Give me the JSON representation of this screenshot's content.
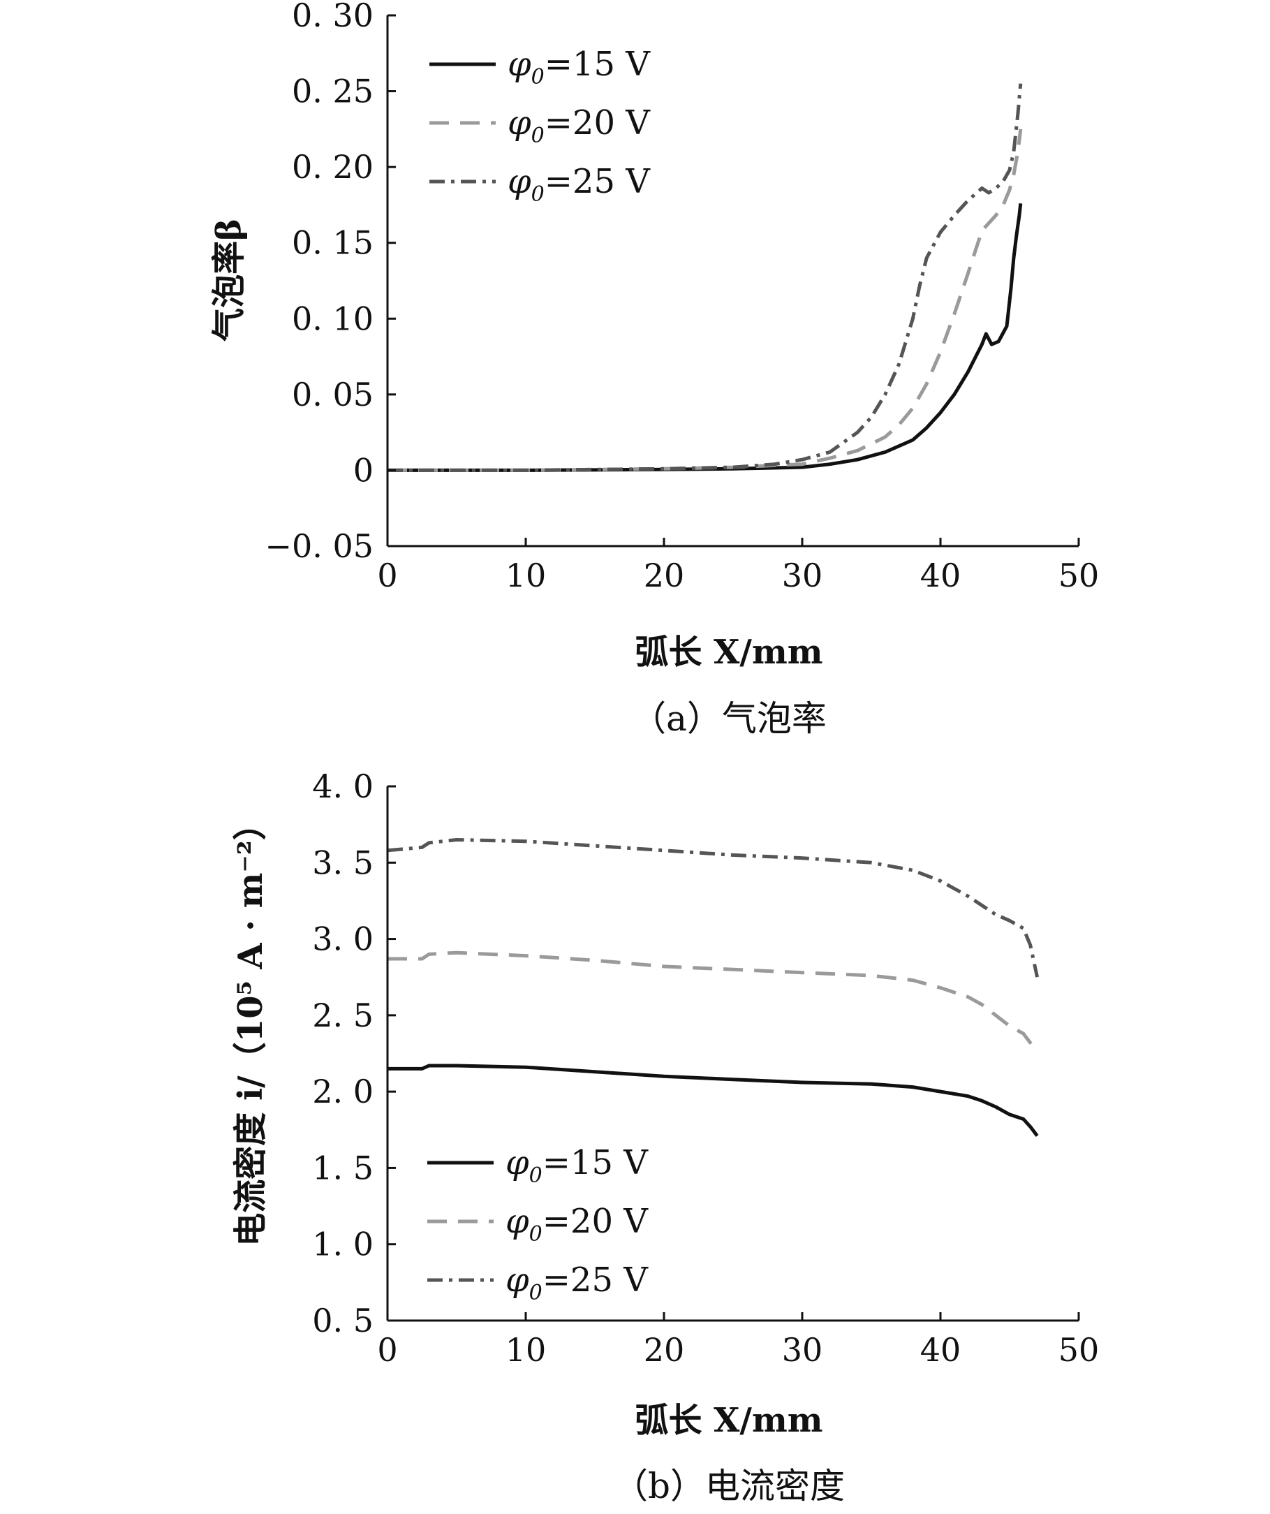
{
  "chart_data": [
    {
      "type": "line",
      "caption": "（a）气泡率",
      "xlabel": "弧长 X/mm",
      "ylabel": "气泡率β",
      "xlim": [
        0,
        50
      ],
      "ylim": [
        -0.05,
        0.3
      ],
      "xticks": [
        0,
        10,
        20,
        30,
        40,
        50
      ],
      "xtick_labels": [
        "0",
        "10",
        "20",
        "30",
        "40",
        "50"
      ],
      "yticks": [
        -0.05,
        0,
        0.05,
        0.1,
        0.15,
        0.2,
        0.25,
        0.3
      ],
      "ytick_labels": [
        "−0. 05",
        "0",
        "0. 05",
        "0. 10",
        "0. 15",
        "0. 20",
        "0. 25",
        "0. 30"
      ],
      "legend_position": "top-left",
      "series": [
        {
          "name": "φ0=15 V",
          "legend_symbol": "φ",
          "legend_sub": "0",
          "legend_value": "=15 V",
          "color": "#111111",
          "dash": "solid",
          "x": [
            0,
            10,
            20,
            25,
            30,
            32,
            34,
            36,
            38,
            39,
            40,
            41,
            42,
            42.5,
            43,
            43.3,
            43.7,
            44.2,
            44.8,
            45.1,
            45.3,
            45.5,
            45.7,
            45.8
          ],
          "y": [
            0,
            0,
            0.0005,
            0.001,
            0.002,
            0.004,
            0.007,
            0.012,
            0.02,
            0.028,
            0.038,
            0.05,
            0.065,
            0.074,
            0.083,
            0.09,
            0.083,
            0.085,
            0.095,
            0.12,
            0.14,
            0.155,
            0.168,
            0.176
          ]
        },
        {
          "name": "φ0=20 V",
          "legend_symbol": "φ",
          "legend_sub": "0",
          "legend_value": "=20 V",
          "color": "#9a9a9a",
          "dash": "28 16",
          "x": [
            0,
            10,
            20,
            25,
            30,
            32,
            34,
            36,
            37,
            38,
            39,
            40,
            41,
            42,
            43,
            44,
            44.5,
            45,
            45.3,
            45.6,
            45.8
          ],
          "y": [
            0,
            0,
            0.001,
            0.002,
            0.004,
            0.008,
            0.013,
            0.022,
            0.03,
            0.041,
            0.057,
            0.078,
            0.103,
            0.13,
            0.158,
            0.168,
            0.174,
            0.185,
            0.195,
            0.21,
            0.225
          ]
        },
        {
          "name": "φ0=25 V",
          "legend_symbol": "φ",
          "legend_sub": "0",
          "legend_value": "=25 V",
          "color": "#555555",
          "dash": "22 9 5 9",
          "x": [
            0,
            10,
            20,
            25,
            28,
            30,
            32,
            34,
            35,
            36,
            37,
            38,
            38.5,
            39,
            40,
            41,
            42,
            43,
            43.5,
            44,
            44.5,
            45,
            45.3,
            45.6,
            45.8
          ],
          "y": [
            0,
            0,
            0.001,
            0.002,
            0.004,
            0.007,
            0.012,
            0.025,
            0.035,
            0.05,
            0.07,
            0.1,
            0.122,
            0.14,
            0.157,
            0.168,
            0.178,
            0.186,
            0.183,
            0.186,
            0.19,
            0.198,
            0.21,
            0.235,
            0.255
          ]
        }
      ]
    },
    {
      "type": "line",
      "caption": "（b）电流密度",
      "xlabel": "弧长 X/mm",
      "ylabel": "电流密度 i/（10⁵ A · m⁻²）",
      "xlim": [
        0,
        50
      ],
      "ylim": [
        0.5,
        4.0
      ],
      "xticks": [
        0,
        10,
        20,
        30,
        40,
        50
      ],
      "xtick_labels": [
        "0",
        "10",
        "20",
        "30",
        "40",
        "50"
      ],
      "yticks": [
        0.5,
        1.0,
        1.5,
        2.0,
        2.5,
        3.0,
        3.5,
        4.0
      ],
      "ytick_labels": [
        "0. 5",
        "1. 0",
        "1. 5",
        "2. 0",
        "2. 5",
        "3. 0",
        "3. 5",
        "4. 0"
      ],
      "legend_position": "bottom-left",
      "series": [
        {
          "name": "φ0=15 V",
          "legend_symbol": "φ",
          "legend_sub": "0",
          "legend_value": "=15 V",
          "color": "#111111",
          "dash": "solid",
          "x": [
            0,
            2.5,
            3,
            5,
            10,
            15,
            20,
            25,
            30,
            35,
            38,
            40,
            42,
            43,
            44,
            45,
            46,
            46.5,
            47
          ],
          "y": [
            2.15,
            2.15,
            2.17,
            2.17,
            2.16,
            2.13,
            2.1,
            2.08,
            2.06,
            2.05,
            2.03,
            2.0,
            1.97,
            1.94,
            1.9,
            1.85,
            1.82,
            1.77,
            1.71
          ]
        },
        {
          "name": "φ0=20 V",
          "legend_symbol": "φ",
          "legend_sub": "0",
          "legend_value": "=20 V",
          "color": "#9a9a9a",
          "dash": "28 16",
          "x": [
            0,
            2.5,
            3,
            5,
            10,
            15,
            20,
            25,
            30,
            35,
            38,
            40,
            42,
            43,
            44,
            45,
            46,
            46.5,
            47
          ],
          "y": [
            2.87,
            2.87,
            2.9,
            2.91,
            2.89,
            2.86,
            2.82,
            2.8,
            2.78,
            2.76,
            2.73,
            2.68,
            2.62,
            2.57,
            2.5,
            2.43,
            2.38,
            2.32,
            2.26
          ]
        },
        {
          "name": "φ0=25 V",
          "legend_symbol": "φ",
          "legend_sub": "0",
          "legend_value": "=25 V",
          "color": "#555555",
          "dash": "22 9 5 9",
          "x": [
            0,
            2.5,
            3,
            5,
            10,
            15,
            20,
            25,
            30,
            35,
            38,
            40,
            42,
            43,
            44,
            45,
            46,
            46.5,
            47
          ],
          "y": [
            3.58,
            3.6,
            3.63,
            3.65,
            3.64,
            3.61,
            3.58,
            3.55,
            3.53,
            3.5,
            3.45,
            3.38,
            3.28,
            3.22,
            3.16,
            3.12,
            3.07,
            2.96,
            2.75
          ]
        }
      ]
    }
  ]
}
